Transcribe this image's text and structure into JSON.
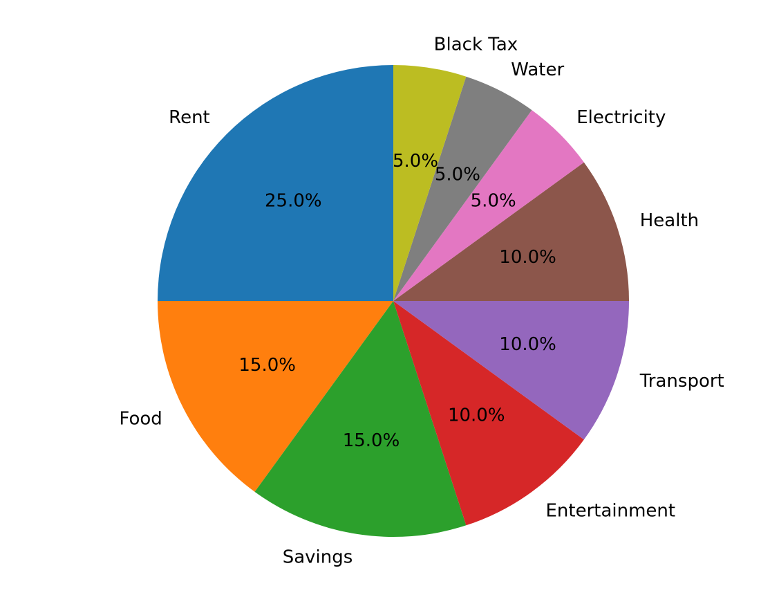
{
  "chart_data": {
    "type": "pie",
    "title": "",
    "categories": [
      "Rent",
      "Food",
      "Savings",
      "Entertainment",
      "Transport",
      "Health",
      "Electricity",
      "Water",
      "Black Tax"
    ],
    "values": [
      25.0,
      15.0,
      15.0,
      10.0,
      10.0,
      10.0,
      5.0,
      5.0,
      5.0
    ],
    "data_labels": [
      "25.0%",
      "15.0%",
      "15.0%",
      "10.0%",
      "10.0%",
      "10.0%",
      "5.0%",
      "5.0%",
      "5.0%"
    ],
    "colors": [
      "#1f77b4",
      "#ff7f0e",
      "#2ca02c",
      "#d62728",
      "#9467bd",
      "#8c564b",
      "#e377c2",
      "#7f7f7f",
      "#bcbd22"
    ],
    "start_angle_deg": 90,
    "direction": "counterclockwise",
    "legend": "none"
  }
}
